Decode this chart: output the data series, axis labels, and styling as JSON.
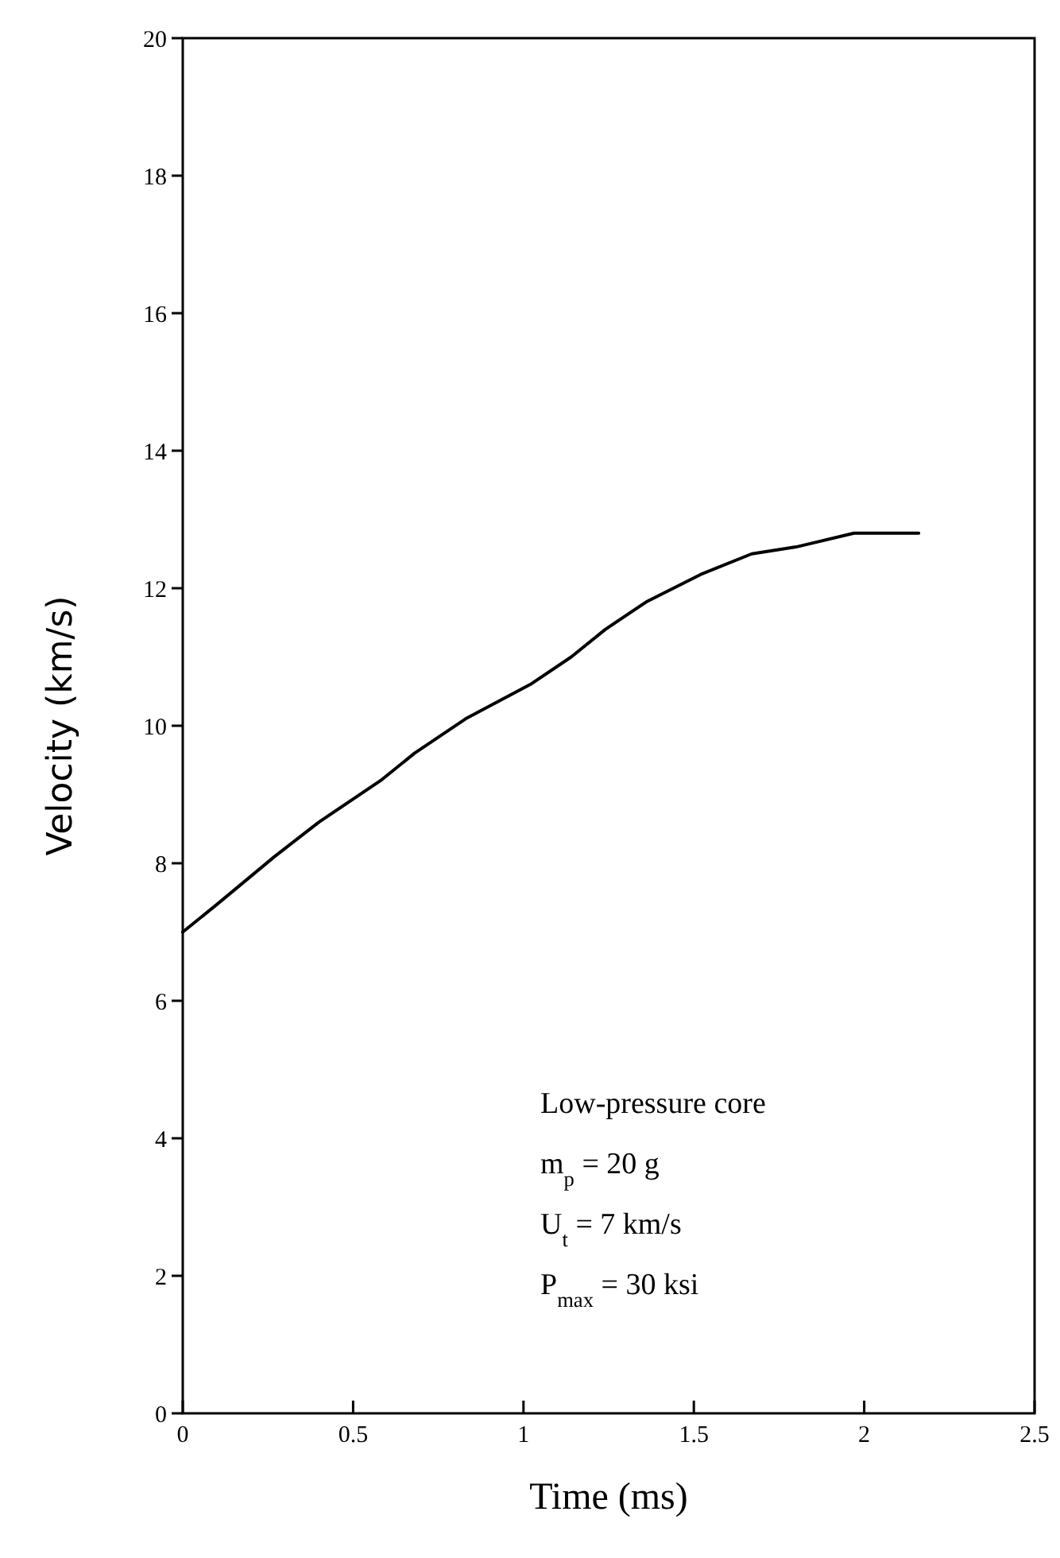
{
  "chart_data": {
    "type": "line",
    "xlabel": "Time (ms)",
    "ylabel": "Velocity (km/s)",
    "x": [
      0,
      0.1,
      0.27,
      0.4,
      0.58,
      0.68,
      0.83,
      1.02,
      1.14,
      1.24,
      1.36,
      1.52,
      1.67,
      1.8,
      1.97,
      2.16
    ],
    "series": [
      {
        "color": "#000000",
        "values": [
          7.0,
          7.4,
          8.1,
          8.6,
          9.2,
          9.6,
          10.1,
          10.6,
          11.0,
          11.4,
          11.8,
          12.2,
          12.5,
          12.6,
          12.8,
          12.8
        ]
      }
    ],
    "xlim": [
      0,
      2.5
    ],
    "xticks": [
      0,
      0.5,
      1,
      1.5,
      2,
      2.5
    ],
    "ylim": [
      0,
      20
    ],
    "yticks": [
      0,
      2,
      4,
      6,
      8,
      10,
      12,
      14,
      16,
      18,
      20
    ],
    "grid": false,
    "marker": "none",
    "line_style": "solid",
    "annotations": [
      "Low-pressure core",
      "m$_{p}$ = 20 g",
      "U$_{t}$ = 7 km/s",
      "P$_{max}$ = 30 ksi"
    ]
  }
}
